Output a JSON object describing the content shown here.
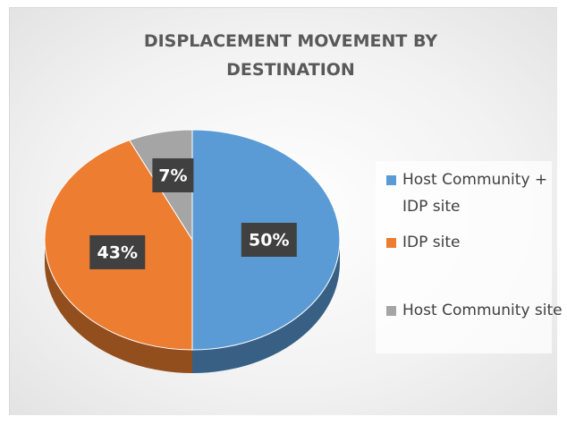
{
  "chart_data": {
    "type": "pie",
    "title": "DISPLACEMENT MOVEMENT BY DESTINATION",
    "categories": [
      "Host Community + IDP site",
      "IDP site",
      "Host Community site"
    ],
    "values": [
      50,
      43,
      7
    ],
    "value_labels": [
      "50%",
      "43%",
      "7%"
    ],
    "colors": [
      "#5b9bd5",
      "#ed7d31",
      "#a5a5a5"
    ],
    "legend": "right"
  }
}
